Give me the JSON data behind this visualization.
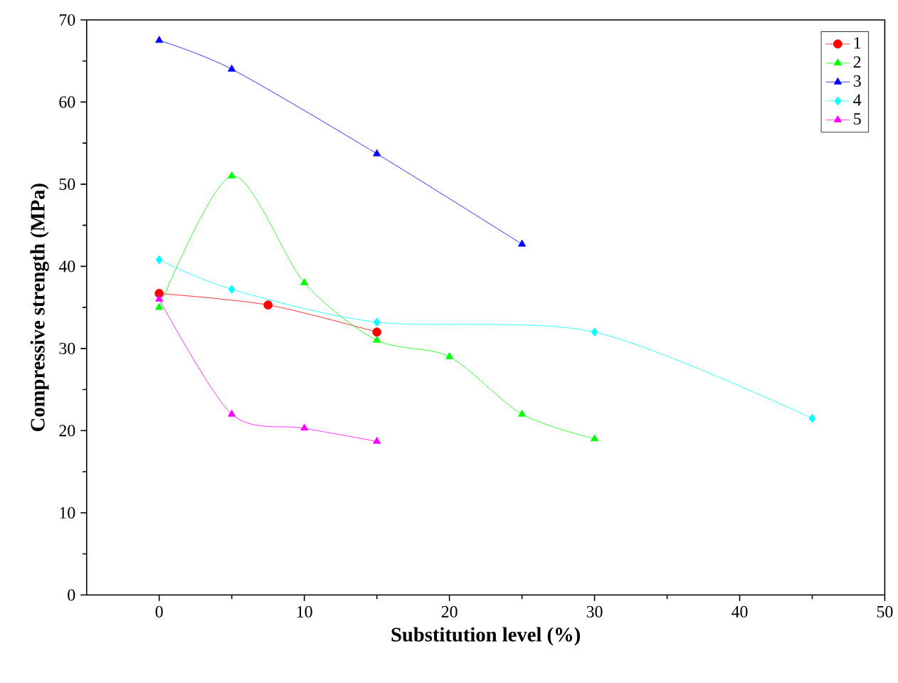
{
  "chart_data": {
    "type": "line",
    "xlabel": "Substitution level (%)",
    "ylabel": "Compressive strength (MPa)",
    "xlim": [
      -5,
      50
    ],
    "ylim": [
      0,
      70
    ],
    "xticks": [
      0,
      10,
      20,
      30,
      40,
      50
    ],
    "yticks": [
      0,
      10,
      20,
      30,
      40,
      50,
      60,
      70
    ],
    "legend": "top right",
    "grid": false,
    "line_style": "solid",
    "series": [
      {
        "name": "1",
        "color": "#ff0000",
        "marker": "circle",
        "x": [
          0,
          7.5,
          15
        ],
        "values": [
          36.7,
          35.3,
          32
        ]
      },
      {
        "name": "2",
        "color": "#00ff00",
        "marker": "triangle",
        "x": [
          0,
          5,
          10,
          15,
          20,
          25,
          30
        ],
        "values": [
          35,
          51,
          38,
          31,
          29,
          22,
          19
        ]
      },
      {
        "name": "3",
        "color": "#0000ff",
        "marker": "triangle-down",
        "x": [
          0,
          5,
          15,
          25
        ],
        "values": [
          67.5,
          64,
          53.7,
          42.7
        ]
      },
      {
        "name": "4",
        "color": "#00ffff",
        "marker": "diamond",
        "x": [
          0,
          5,
          15,
          30,
          45
        ],
        "values": [
          40.8,
          37.2,
          33.2,
          32,
          21.5
        ]
      },
      {
        "name": "5",
        "color": "#ff00ff",
        "marker": "triangle-left",
        "x": [
          0,
          5,
          10,
          15
        ],
        "values": [
          36,
          22,
          20.3,
          18.7
        ]
      }
    ]
  }
}
